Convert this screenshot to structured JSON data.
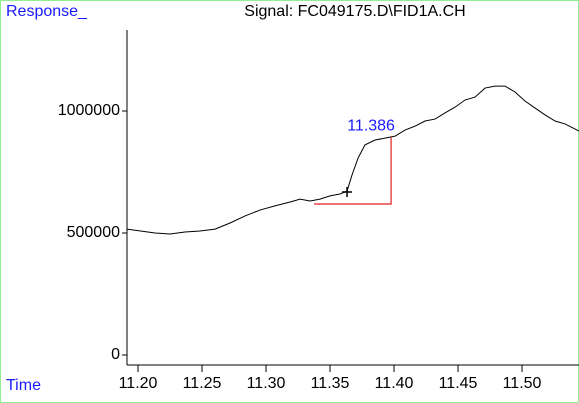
{
  "chart_data": {
    "type": "line",
    "title": "Signal: FC049175.D\\FID1A.CH",
    "y_label": "Response_",
    "x_label": "Time",
    "x": [
      11.191,
      11.202,
      11.2133,
      11.225,
      11.2367,
      11.2484,
      11.2602,
      11.2719,
      11.2836,
      11.2953,
      11.307,
      11.3188,
      11.3266,
      11.3344,
      11.3422,
      11.35,
      11.3578,
      11.3633,
      11.3672,
      11.3719,
      11.3773,
      11.3852,
      11.393,
      11.4008,
      11.4086,
      11.4164,
      11.4242,
      11.432,
      11.4398,
      11.4477,
      11.4555,
      11.4633,
      11.4711,
      11.4789,
      11.4867,
      11.4945,
      11.5023,
      11.5102,
      11.518,
      11.5258,
      11.5336,
      11.5445
    ],
    "series": [
      {
        "color": "#000000",
        "values": [
          516000,
          508000,
          500000,
          496000,
          504000,
          508000,
          516000,
          541000,
          570000,
          594000,
          611000,
          627000,
          639000,
          631000,
          639000,
          652000,
          660000,
          672000,
          738000,
          807000,
          861000,
          881000,
          889000,
          897000,
          922000,
          938000,
          959000,
          967000,
          992000,
          1016000,
          1045000,
          1057000,
          1094000,
          1102000,
          1102000,
          1078000,
          1041000,
          1012000,
          984000,
          959000,
          947000,
          918000
        ]
      }
    ],
    "integration": {
      "color": "#e02020",
      "x": [
        11.3375,
        11.3977,
        11.3977
      ],
      "y": [
        619000,
        619000,
        893000
      ]
    },
    "cursor": {
      "x": 11.3633,
      "y": 668000
    },
    "peak_label": {
      "text": "11.386",
      "color": "#1a1aff"
    },
    "xlim": [
      11.1914,
      11.5445
    ],
    "ylim": [
      -41000,
      1332000
    ],
    "xticks": [
      {
        "value": 11.2,
        "label": "11.20"
      },
      11.25,
      {
        "value": 11.3,
        "label": "11.30"
      },
      11.35,
      {
        "value": 11.4,
        "label": "11.40"
      },
      11.45,
      {
        "value": 11.5,
        "label": "11.50"
      }
    ],
    "yticks": [
      0,
      500000,
      1000000
    ]
  }
}
